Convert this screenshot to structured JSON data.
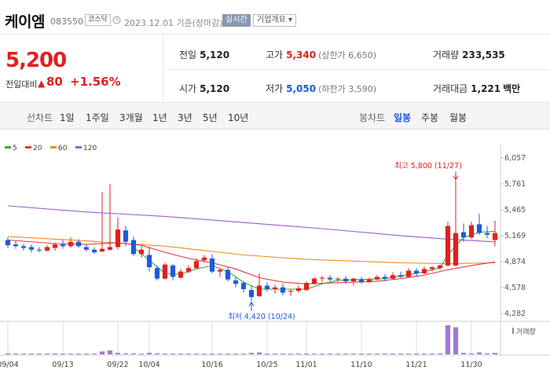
{
  "header": {
    "name": "케이엠",
    "code": "083550",
    "market": "코스닥",
    "date": "2023.12.01 기준(장마감)",
    "realtime": "실시간",
    "corp_info": "기업개요 ▾"
  },
  "quote": {
    "price": "5,200",
    "change_label": "전일대비",
    "change_arrow": "▲",
    "change": "80",
    "change_pct": "+1.56%",
    "prev_close_label": "전일",
    "prev_close": "5,120",
    "open_label": "시가",
    "open": "5,120",
    "high_label": "고가",
    "high": "5,340",
    "upper_limit": "(상한가 6,650)",
    "low_label": "저가",
    "low": "5,050",
    "lower_limit": "(하한가 3,590)",
    "volume_label": "거래량",
    "volume": "233,535",
    "amount_label": "거래대금",
    "amount": "1,221",
    "amount_unit": "백만"
  },
  "tabs": {
    "line_label": "선차트",
    "periods": [
      "1일",
      "1주일",
      "3개월",
      "1년",
      "3년",
      "5년",
      "10년"
    ],
    "candle_label": "봉차트",
    "candles": [
      "일봉",
      "주봉",
      "월봉"
    ],
    "active_candle": "일봉"
  },
  "colors": {
    "up": "#e02020",
    "down": "#1e5bd8",
    "ma5": "#3aaa35",
    "ma20": "#e03c3c",
    "ma60": "#ef8a1f",
    "ma120": "#9b5bd4"
  },
  "chart_data": {
    "type": "candlestick",
    "legend": [
      "5",
      "20",
      "60",
      "120"
    ],
    "y_ticks": [
      "6,057",
      "5,761",
      "5,465",
      "5,169",
      "4,874",
      "4,578",
      "4,282"
    ],
    "ylim": [
      4282,
      6057
    ],
    "x_tick_labels": [
      "09/04",
      "09/13",
      "09/22",
      "10/04",
      "10/16",
      "10/25",
      "11/01",
      "11/10",
      "11/21",
      "11/30"
    ],
    "x_tick_index": [
      0,
      7,
      14,
      18,
      26,
      33,
      38,
      45,
      52,
      59
    ],
    "max_label": "최고 5,800 (11/27)",
    "min_label": "최저 4,420 (10/24)",
    "volume_label": "거래량",
    "candles": [
      [
        5120,
        5150,
        5030,
        5060
      ],
      [
        5070,
        5110,
        5020,
        5050
      ],
      [
        5050,
        5080,
        5000,
        5030
      ],
      [
        5040,
        5070,
        4980,
        5010
      ],
      [
        5010,
        5040,
        4980,
        5000
      ],
      [
        5000,
        5060,
        4990,
        5040
      ],
      [
        5030,
        5090,
        5000,
        5070
      ],
      [
        5070,
        5120,
        5020,
        5050
      ],
      [
        5050,
        5150,
        5030,
        5100
      ],
      [
        5100,
        5130,
        5030,
        5050
      ],
      [
        5040,
        5070,
        4990,
        5010
      ],
      [
        5010,
        5040,
        4960,
        4980
      ],
      [
        4990,
        5670,
        4980,
        5020
      ],
      [
        5010,
        5760,
        5000,
        5040
      ],
      [
        5040,
        5380,
        5010,
        5240
      ],
      [
        5230,
        5280,
        5050,
        5100
      ],
      [
        5120,
        5160,
        4940,
        4960
      ],
      [
        4960,
        5050,
        4920,
        5010
      ],
      [
        4950,
        5040,
        4760,
        4810
      ],
      [
        4800,
        4830,
        4660,
        4680
      ],
      [
        4680,
        4860,
        4670,
        4840
      ],
      [
        4830,
        4850,
        4660,
        4700
      ],
      [
        4690,
        4790,
        4680,
        4760
      ],
      [
        4760,
        4830,
        4740,
        4800
      ],
      [
        4800,
        4910,
        4790,
        4880
      ],
      [
        4890,
        4950,
        4860,
        4920
      ],
      [
        4910,
        4960,
        4740,
        4760
      ],
      [
        4760,
        4800,
        4700,
        4780
      ],
      [
        4780,
        4810,
        4650,
        4670
      ],
      [
        4660,
        4700,
        4580,
        4620
      ],
      [
        4630,
        4650,
        4520,
        4560
      ],
      [
        4550,
        4600,
        4420,
        4470
      ],
      [
        4480,
        4740,
        4470,
        4600
      ],
      [
        4600,
        4640,
        4530,
        4560
      ],
      [
        4560,
        4610,
        4510,
        4580
      ],
      [
        4580,
        4620,
        4490,
        4520
      ],
      [
        4530,
        4560,
        4480,
        4540
      ],
      [
        4540,
        4600,
        4520,
        4570
      ],
      [
        4550,
        4650,
        4540,
        4630
      ],
      [
        4620,
        4700,
        4610,
        4680
      ],
      [
        4680,
        4710,
        4640,
        4690
      ],
      [
        4690,
        4720,
        4650,
        4670
      ],
      [
        4670,
        4700,
        4640,
        4680
      ],
      [
        4680,
        4710,
        4620,
        4650
      ],
      [
        4650,
        4690,
        4600,
        4680
      ],
      [
        4670,
        4700,
        4620,
        4640
      ],
      [
        4640,
        4690,
        4630,
        4670
      ],
      [
        4670,
        4720,
        4660,
        4700
      ],
      [
        4700,
        4730,
        4650,
        4680
      ],
      [
        4680,
        4750,
        4670,
        4720
      ],
      [
        4720,
        4760,
        4690,
        4700
      ],
      [
        4700,
        4800,
        4690,
        4770
      ],
      [
        4770,
        4800,
        4700,
        4740
      ],
      [
        4740,
        4820,
        4730,
        4790
      ],
      [
        4790,
        4820,
        4760,
        4810
      ],
      [
        4800,
        4840,
        4780,
        4830
      ],
      [
        4830,
        5330,
        4820,
        5280
      ],
      [
        4830,
        5800,
        4820,
        5200
      ],
      [
        5210,
        5310,
        5100,
        5150
      ],
      [
        5150,
        5330,
        5130,
        5290
      ],
      [
        5300,
        5420,
        5180,
        5200
      ],
      [
        5200,
        5280,
        5140,
        5180
      ],
      [
        5120,
        5340,
        5050,
        5200
      ]
    ],
    "ma": {
      "ma5": [
        [
          16,
          5035
        ],
        [
          18,
          4890
        ],
        [
          20,
          4740
        ],
        [
          22,
          4730
        ],
        [
          24,
          4790
        ],
        [
          26,
          4830
        ],
        [
          28,
          4760
        ],
        [
          30,
          4640
        ],
        [
          32,
          4560
        ],
        [
          34,
          4560
        ],
        [
          36,
          4560
        ],
        [
          38,
          4560
        ],
        [
          40,
          4620
        ],
        [
          42,
          4660
        ],
        [
          45,
          4670
        ],
        [
          48,
          4680
        ],
        [
          50,
          4710
        ],
        [
          52,
          4740
        ],
        [
          54,
          4780
        ],
        [
          55,
          4800
        ],
        [
          56,
          4950
        ],
        [
          57,
          5050
        ],
        [
          58,
          5150
        ],
        [
          60,
          5210
        ],
        [
          62,
          5220
        ]
      ],
      "ma20": [
        [
          0,
          5120
        ],
        [
          6,
          5080
        ],
        [
          10,
          5070
        ],
        [
          14,
          5090
        ],
        [
          17,
          5060
        ],
        [
          20,
          4980
        ],
        [
          23,
          4910
        ],
        [
          26,
          4860
        ],
        [
          29,
          4790
        ],
        [
          32,
          4690
        ],
        [
          35,
          4640
        ],
        [
          38,
          4620
        ],
        [
          41,
          4630
        ],
        [
          44,
          4640
        ],
        [
          47,
          4650
        ],
        [
          50,
          4680
        ],
        [
          53,
          4720
        ],
        [
          56,
          4780
        ],
        [
          59,
          4830
        ],
        [
          62,
          4870
        ]
      ],
      "ma60": [
        [
          0,
          5160
        ],
        [
          10,
          5110
        ],
        [
          20,
          5050
        ],
        [
          30,
          4950
        ],
        [
          38,
          4900
        ],
        [
          44,
          4880
        ],
        [
          50,
          4860
        ],
        [
          56,
          4850
        ],
        [
          62,
          4860
        ]
      ],
      "ma120": [
        [
          0,
          5510
        ],
        [
          10,
          5440
        ],
        [
          20,
          5390
        ],
        [
          30,
          5320
        ],
        [
          40,
          5250
        ],
        [
          50,
          5170
        ],
        [
          56,
          5130
        ],
        [
          62,
          5100
        ]
      ]
    },
    "volume": [
      2,
      1,
      1,
      1,
      1,
      1,
      2,
      1,
      1,
      1,
      1,
      1,
      6,
      8,
      3,
      2,
      2,
      1,
      3,
      2,
      1,
      1,
      1,
      1,
      1,
      1,
      1,
      1,
      1,
      1,
      1,
      3,
      4,
      1,
      1,
      1,
      1,
      1,
      1,
      1,
      1,
      1,
      1,
      1,
      1,
      1,
      1,
      1,
      1,
      1,
      1,
      1,
      1,
      1,
      1,
      2,
      60,
      56,
      3,
      2,
      4,
      2,
      3
    ]
  }
}
